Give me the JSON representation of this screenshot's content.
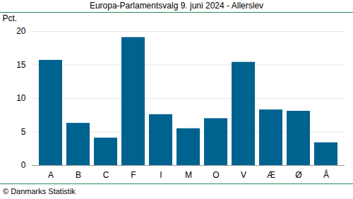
{
  "chart_data": {
    "type": "bar",
    "title": "Europa-Parlamentsvalg 9. juni 2024 - Allerslev",
    "y_label": "Pct.",
    "caption": "© Danmarks Statistik",
    "categories": [
      "A",
      "B",
      "C",
      "F",
      "I",
      "M",
      "O",
      "V",
      "Æ",
      "Ø",
      "Å"
    ],
    "values": [
      15.7,
      6.3,
      4.1,
      19.1,
      7.6,
      5.5,
      7.0,
      15.4,
      8.3,
      8.1,
      3.4
    ],
    "color": "#00628f",
    "ylim": [
      0,
      20
    ],
    "yticks": [
      0,
      5,
      10,
      15,
      20
    ],
    "grid": true
  }
}
